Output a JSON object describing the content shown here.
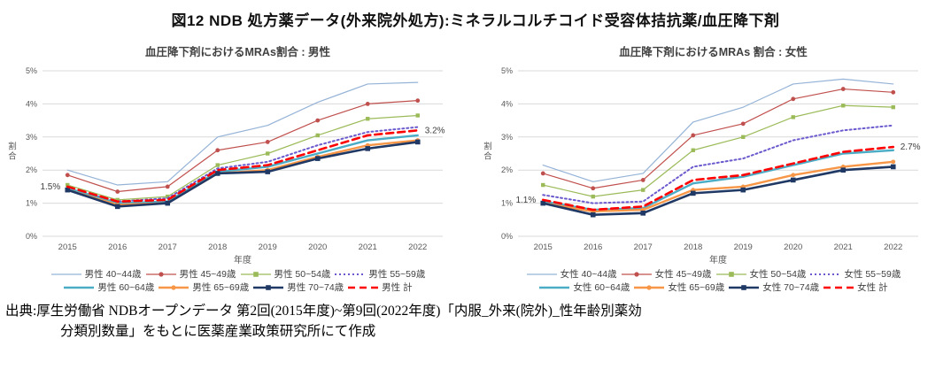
{
  "page": {
    "title": "図12 NDB 処方薬データ(外来院外処方):ミネラルコルチコイド受容体拮抗薬/血圧降下剤",
    "source": {
      "line1": "出典:厚生労働省 NDBオープンデータ 第2回(2015年度)~第9回(2022年度)「内服_外来(院外)_性年齢別薬効",
      "line2": "分類別数量」をもとに医薬産業政策研究所にて作成"
    }
  },
  "colors": {
    "age_40_44": "#95B3D7",
    "age_45_49": "#C0504D",
    "age_50_54": "#9BBB59",
    "age_55_59": "#6A5ACD",
    "age_60_64": "#4BACC6",
    "age_65_69": "#F79646",
    "age_70_74": "#1F3864",
    "total": "#FF0000",
    "gridline": "#D9D9D9",
    "tick_text": "#595959",
    "annotation_text": "#404040"
  },
  "chart_data": [
    {
      "type": "line",
      "title": "血圧降下剤におけるMRAs割合 : 男性",
      "xlabel": "年度",
      "ylabel": "割合",
      "ylim": [
        0,
        5
      ],
      "ytick_suffix": "%",
      "grid": "horizontal",
      "legend_position": "bottom",
      "categories": [
        "2015",
        "2016",
        "2017",
        "2018",
        "2019",
        "2020",
        "2021",
        "2022"
      ],
      "series": [
        {
          "name": "男性 40~44歳",
          "color": "#95B3D7",
          "width": 1.2,
          "dash": "solid",
          "marker": "none",
          "values": [
            2.0,
            1.55,
            1.65,
            3.0,
            3.35,
            4.05,
            4.6,
            4.65
          ]
        },
        {
          "name": "男性 45~49歳",
          "color": "#C0504D",
          "width": 1.2,
          "dash": "solid",
          "marker": "circle",
          "values": [
            1.85,
            1.35,
            1.5,
            2.6,
            2.85,
            3.5,
            4.0,
            4.1
          ]
        },
        {
          "name": "男性 50~54歳",
          "color": "#9BBB59",
          "width": 1.2,
          "dash": "solid",
          "marker": "square",
          "values": [
            1.55,
            1.1,
            1.2,
            2.15,
            2.5,
            3.05,
            3.55,
            3.65
          ]
        },
        {
          "name": "男性 55~59歳",
          "color": "#6A5ACD",
          "width": 2.0,
          "dash": "dot",
          "marker": "none",
          "values": [
            1.45,
            1.05,
            1.15,
            2.05,
            2.25,
            2.75,
            3.15,
            3.3
          ]
        },
        {
          "name": "男性 60~64歳",
          "color": "#4BACC6",
          "width": 2.4,
          "dash": "solid",
          "marker": "none",
          "values": [
            1.45,
            1.0,
            1.05,
            1.95,
            2.1,
            2.5,
            2.9,
            3.05
          ]
        },
        {
          "name": "男性 65~69歳",
          "color": "#F79646",
          "width": 2.4,
          "dash": "solid",
          "marker": "circle",
          "values": [
            1.4,
            0.95,
            1.0,
            1.9,
            2.0,
            2.4,
            2.75,
            2.9
          ]
        },
        {
          "name": "男性 70~74歳",
          "color": "#1F3864",
          "width": 2.6,
          "dash": "solid",
          "marker": "square",
          "values": [
            1.4,
            0.9,
            1.0,
            1.9,
            1.95,
            2.35,
            2.65,
            2.85
          ]
        },
        {
          "name": "男性 計",
          "color": "#FF0000",
          "width": 2.6,
          "dash": "dash",
          "marker": "none",
          "values": [
            1.5,
            1.05,
            1.1,
            2.0,
            2.15,
            2.6,
            3.05,
            3.2
          ]
        }
      ],
      "annotations": [
        {
          "text": "1.5%",
          "x_index": 0,
          "y": 1.5,
          "anchor": "end"
        },
        {
          "text": "3.2%",
          "x_index": 7,
          "y": 3.2,
          "anchor": "start"
        }
      ]
    },
    {
      "type": "line",
      "title": "血圧降下剤におけるMRAs 割合 : 女性",
      "xlabel": "年度",
      "ylabel": "割合",
      "ylim": [
        0,
        5
      ],
      "ytick_suffix": "%",
      "grid": "horizontal",
      "legend_position": "bottom",
      "categories": [
        "2015",
        "2016",
        "2017",
        "2018",
        "2019",
        "2020",
        "2021",
        "2022"
      ],
      "series": [
        {
          "name": "女性 40~44歳",
          "color": "#95B3D7",
          "width": 1.2,
          "dash": "solid",
          "marker": "none",
          "values": [
            2.15,
            1.65,
            1.9,
            3.45,
            3.9,
            4.6,
            4.75,
            4.6
          ]
        },
        {
          "name": "女性 45~49歳",
          "color": "#C0504D",
          "width": 1.2,
          "dash": "solid",
          "marker": "circle",
          "values": [
            1.9,
            1.45,
            1.7,
            3.05,
            3.4,
            4.15,
            4.45,
            4.35
          ]
        },
        {
          "name": "女性 50~54歳",
          "color": "#9BBB59",
          "width": 1.2,
          "dash": "solid",
          "marker": "square",
          "values": [
            1.55,
            1.2,
            1.4,
            2.6,
            3.0,
            3.6,
            3.95,
            3.9
          ]
        },
        {
          "name": "女性 55~59歳",
          "color": "#6A5ACD",
          "width": 2.0,
          "dash": "dot",
          "marker": "none",
          "values": [
            1.25,
            1.0,
            1.05,
            2.1,
            2.35,
            2.9,
            3.2,
            3.35
          ]
        },
        {
          "name": "女性 60~64歳",
          "color": "#4BACC6",
          "width": 2.4,
          "dash": "solid",
          "marker": "none",
          "values": [
            1.05,
            0.8,
            0.85,
            1.6,
            1.8,
            2.15,
            2.5,
            2.6
          ]
        },
        {
          "name": "女性 65~69歳",
          "color": "#F79646",
          "width": 2.4,
          "dash": "solid",
          "marker": "circle",
          "values": [
            1.0,
            0.75,
            0.8,
            1.4,
            1.5,
            1.85,
            2.1,
            2.25
          ]
        },
        {
          "name": "女性 70~74歳",
          "color": "#1F3864",
          "width": 2.6,
          "dash": "solid",
          "marker": "square",
          "values": [
            1.0,
            0.65,
            0.7,
            1.3,
            1.4,
            1.7,
            2.0,
            2.1
          ]
        },
        {
          "name": "女性 計",
          "color": "#FF0000",
          "width": 2.6,
          "dash": "dash",
          "marker": "none",
          "values": [
            1.1,
            0.8,
            0.9,
            1.7,
            1.85,
            2.2,
            2.55,
            2.7
          ]
        }
      ],
      "annotations": [
        {
          "text": "1.1%",
          "x_index": 0,
          "y": 1.1,
          "anchor": "end"
        },
        {
          "text": "2.7%",
          "x_index": 7,
          "y": 2.7,
          "anchor": "start"
        }
      ]
    }
  ]
}
